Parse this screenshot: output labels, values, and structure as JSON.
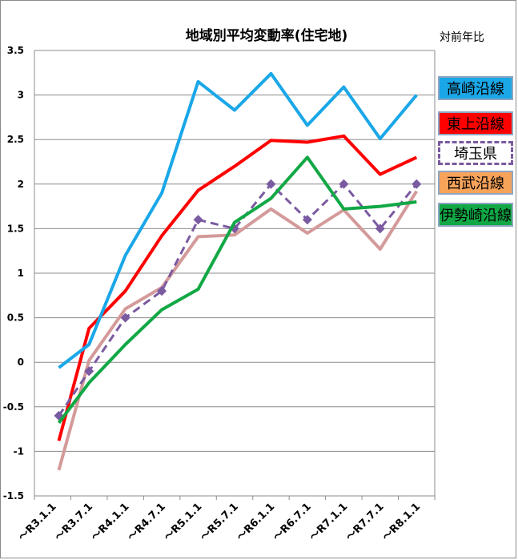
{
  "chart_data": {
    "type": "line",
    "title": "地域別平均変動率(住宅地)",
    "unit_note": "対前年比",
    "categories": [
      "～R3.1.1",
      "～R3.7.1",
      "～R4.1.1",
      "～R4.7.1",
      "～R5.1.1",
      "～R5.7.1",
      "～R6.1.1",
      "～R6.7.1",
      "～R7.1.1",
      "～R7.7.1",
      "～R8.1.1"
    ],
    "ylim": [
      -1.5,
      3.5
    ],
    "yticks": [
      "3.5",
      "3",
      "2.5",
      "2",
      "1.5",
      "1",
      "0.5",
      "0",
      "-0.5",
      "-1",
      "-1.5"
    ],
    "x_positions": [
      0.17,
      1,
      2,
      3,
      4,
      5,
      6,
      7,
      8,
      9,
      10
    ],
    "grid": "horizontal",
    "legend_position": "right",
    "series": [
      {
        "name": "高崎沿線",
        "color": "#1aa7e8",
        "style": "solid",
        "values": [
          -0.06,
          0.2,
          1.2,
          1.9,
          3.15,
          2.83,
          3.24,
          2.66,
          3.09,
          2.51,
          3.0
        ]
      },
      {
        "name": "東上沿線",
        "color": "#ff0000",
        "style": "solid",
        "values": [
          -0.88,
          0.38,
          0.8,
          1.42,
          1.93,
          2.2,
          2.49,
          2.47,
          2.54,
          2.11,
          2.3
        ]
      },
      {
        "name": "埼玉県",
        "color": "#7a5aa0",
        "style": "dashed",
        "values": [
          -0.6,
          -0.1,
          0.5,
          0.8,
          1.6,
          1.5,
          2.0,
          1.6,
          2.0,
          1.5,
          2.0
        ]
      },
      {
        "name": "西武沿線",
        "color": "#d49a9a",
        "style": "solid",
        "values": [
          -1.21,
          0.02,
          0.6,
          0.84,
          1.41,
          1.43,
          1.72,
          1.45,
          1.71,
          1.27,
          1.92
        ]
      },
      {
        "name": "伊勢崎沿線",
        "color": "#11a845",
        "style": "solid",
        "values": [
          -0.68,
          -0.23,
          0.2,
          0.59,
          0.82,
          1.57,
          1.84,
          2.3,
          1.72,
          1.75,
          1.8
        ]
      }
    ]
  },
  "legend": [
    {
      "label": "高崎沿線",
      "bg": "#1aa7e8",
      "border": "#8ea6c2",
      "dashed": false
    },
    {
      "label": "東上沿線",
      "bg": "#ff0000",
      "border": "#8ea6c2",
      "dashed": false
    },
    {
      "label": "埼玉県",
      "bg": "#ffffff",
      "border": "#7a5aa0",
      "dashed": true
    },
    {
      "label": "西武沿線",
      "bg": "#f7a35a",
      "border": "#8ea6c2",
      "dashed": false
    },
    {
      "label": "伊勢崎沿線",
      "bg": "#11a845",
      "border": "#8ea6c2",
      "dashed": false
    }
  ]
}
